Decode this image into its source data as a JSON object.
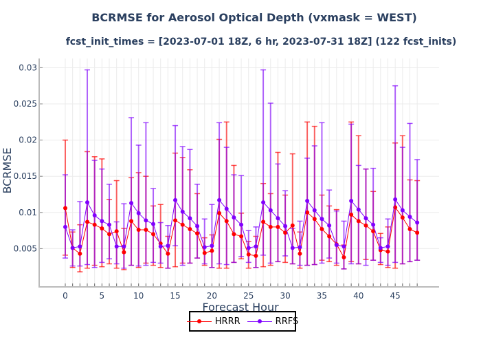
{
  "chart_data": {
    "type": "line",
    "title": "BCRMSE for Aerosol Optical Depth (vxmask = WEST)",
    "subtitle": "fcst_init_times = [2023-07-01 18Z, 6 hr, 2023-07-31 18Z] (122 fcst_inits)",
    "xlabel": "Forecast Hour",
    "ylabel": "BCRMSE",
    "xlim": [
      -3.5,
      51.5
    ],
    "ylim": [
      0,
      0.031
    ],
    "x_ticks": [
      0,
      5,
      10,
      15,
      20,
      25,
      30,
      35,
      40,
      45
    ],
    "x_tick_labels": [
      "0",
      "5",
      "10",
      "15",
      "20",
      "25",
      "30",
      "35",
      "40",
      "45"
    ],
    "y_ticks": [
      0.005,
      0.01,
      0.015,
      0.02,
      0.025,
      0.03
    ],
    "y_tick_labels": [
      "0.005",
      "0.01",
      "0.015",
      "0.02",
      "0.025",
      "0.03"
    ],
    "grid": true,
    "legend_position": "bottom-center",
    "x": [
      0,
      1,
      2,
      3,
      4,
      5,
      6,
      7,
      8,
      9,
      10,
      11,
      12,
      13,
      14,
      15,
      16,
      17,
      18,
      19,
      20,
      21,
      22,
      23,
      24,
      25,
      26,
      27,
      28,
      29,
      30,
      31,
      32,
      33,
      34,
      35,
      36,
      37,
      38,
      39,
      40,
      41,
      42,
      43,
      44,
      45,
      46,
      47,
      48
    ],
    "series": [
      {
        "name": "HRRR",
        "color": "#ff0000",
        "values": [
          0.0106,
          0.0051,
          0.0043,
          0.0087,
          0.0083,
          0.0078,
          0.007,
          0.0074,
          0.0045,
          0.0088,
          0.0076,
          0.0076,
          0.007,
          0.0057,
          0.0043,
          0.0089,
          0.0083,
          0.0077,
          0.0071,
          0.0044,
          0.0047,
          0.0099,
          0.0088,
          0.007,
          0.0067,
          0.0042,
          0.004,
          0.0087,
          0.008,
          0.008,
          0.0072,
          0.0082,
          0.0043,
          0.01,
          0.0091,
          0.0077,
          0.0067,
          0.0056,
          0.0038,
          0.0097,
          0.0088,
          0.0082,
          0.0074,
          0.0048,
          0.0046,
          0.0107,
          0.0093,
          0.0077,
          0.0072
        ],
        "upper": [
          0.02,
          0.0073,
          0.0083,
          0.0184,
          0.0177,
          0.0174,
          0.0118,
          0.0144,
          0.0078,
          0.0148,
          0.0155,
          0.015,
          0.0109,
          0.0111,
          0.0067,
          0.0182,
          0.0176,
          0.0159,
          0.0126,
          0.0065,
          0.0069,
          0.0201,
          0.0225,
          0.0165,
          0.0099,
          0.006,
          0.0067,
          0.014,
          0.0126,
          0.0183,
          0.0124,
          0.0181,
          0.0073,
          0.0225,
          0.0219,
          0.0124,
          0.0109,
          0.0104,
          0.0055,
          0.0225,
          0.0206,
          0.016,
          0.0129,
          0.0071,
          0.008,
          0.0196,
          0.0206,
          0.0145,
          0.0144
        ],
        "lower": [
          0.0041,
          0.0024,
          0.0018,
          0.0023,
          0.0027,
          0.0025,
          0.0029,
          0.0023,
          0.0021,
          0.0027,
          0.0024,
          0.003,
          0.0027,
          0.0024,
          0.0023,
          0.0025,
          0.003,
          0.003,
          0.0037,
          0.0027,
          0.0024,
          0.0023,
          0.0023,
          0.0031,
          0.0036,
          0.0023,
          0.0024,
          0.0025,
          0.0027,
          0.0032,
          0.0031,
          0.0029,
          0.0023,
          0.0027,
          0.0028,
          0.0034,
          0.0032,
          0.0027,
          0.0022,
          0.0032,
          0.0029,
          0.0035,
          0.0034,
          0.0028,
          0.0024,
          0.0023,
          0.0029,
          0.0032,
          0.0034
        ]
      },
      {
        "name": "RRFS",
        "color": "#8000ff",
        "values": [
          0.008,
          0.0051,
          0.0053,
          0.0114,
          0.0096,
          0.0088,
          0.0083,
          0.0053,
          0.0053,
          0.0113,
          0.0099,
          0.0089,
          0.0084,
          0.0053,
          0.0054,
          0.0117,
          0.0101,
          0.0092,
          0.0081,
          0.0052,
          0.0054,
          0.0117,
          0.0105,
          0.0093,
          0.0083,
          0.0051,
          0.0053,
          0.0114,
          0.0103,
          0.0092,
          0.0081,
          0.0051,
          0.0052,
          0.0116,
          0.0103,
          0.0091,
          0.0082,
          0.0055,
          0.0053,
          0.0116,
          0.0104,
          0.0092,
          0.0083,
          0.0051,
          0.0053,
          0.0118,
          0.0103,
          0.0094,
          0.0086
        ],
        "upper": [
          0.0152,
          0.0076,
          0.0115,
          0.0297,
          0.0172,
          0.016,
          0.0139,
          0.0087,
          0.0112,
          0.0231,
          0.0193,
          0.0224,
          0.0133,
          0.0086,
          0.0082,
          0.022,
          0.0191,
          0.0187,
          0.0139,
          0.0091,
          0.0111,
          0.0224,
          0.019,
          0.0152,
          0.0151,
          0.0075,
          0.008,
          0.0297,
          0.0251,
          0.0167,
          0.013,
          0.0078,
          0.0088,
          0.0175,
          0.0192,
          0.0224,
          0.0131,
          0.0102,
          0.0088,
          0.0222,
          0.0165,
          0.016,
          0.0161,
          0.0065,
          0.0091,
          0.0275,
          0.019,
          0.0223,
          0.0173
        ],
        "lower": [
          0.0037,
          0.0026,
          0.0026,
          0.0028,
          0.0024,
          0.0031,
          0.0036,
          0.0029,
          0.0023,
          0.0027,
          0.0026,
          0.0027,
          0.0031,
          0.003,
          0.0023,
          0.0054,
          0.0027,
          0.003,
          0.0037,
          0.0029,
          0.0024,
          0.0029,
          0.0028,
          0.0031,
          0.0039,
          0.0031,
          0.0024,
          0.0041,
          0.003,
          0.0032,
          0.004,
          0.0029,
          0.0027,
          0.0027,
          0.0028,
          0.003,
          0.0037,
          0.003,
          0.0022,
          0.0029,
          0.0029,
          0.0027,
          0.0034,
          0.0031,
          0.0027,
          0.0031,
          0.0029,
          0.0032,
          0.0034
        ]
      }
    ]
  }
}
